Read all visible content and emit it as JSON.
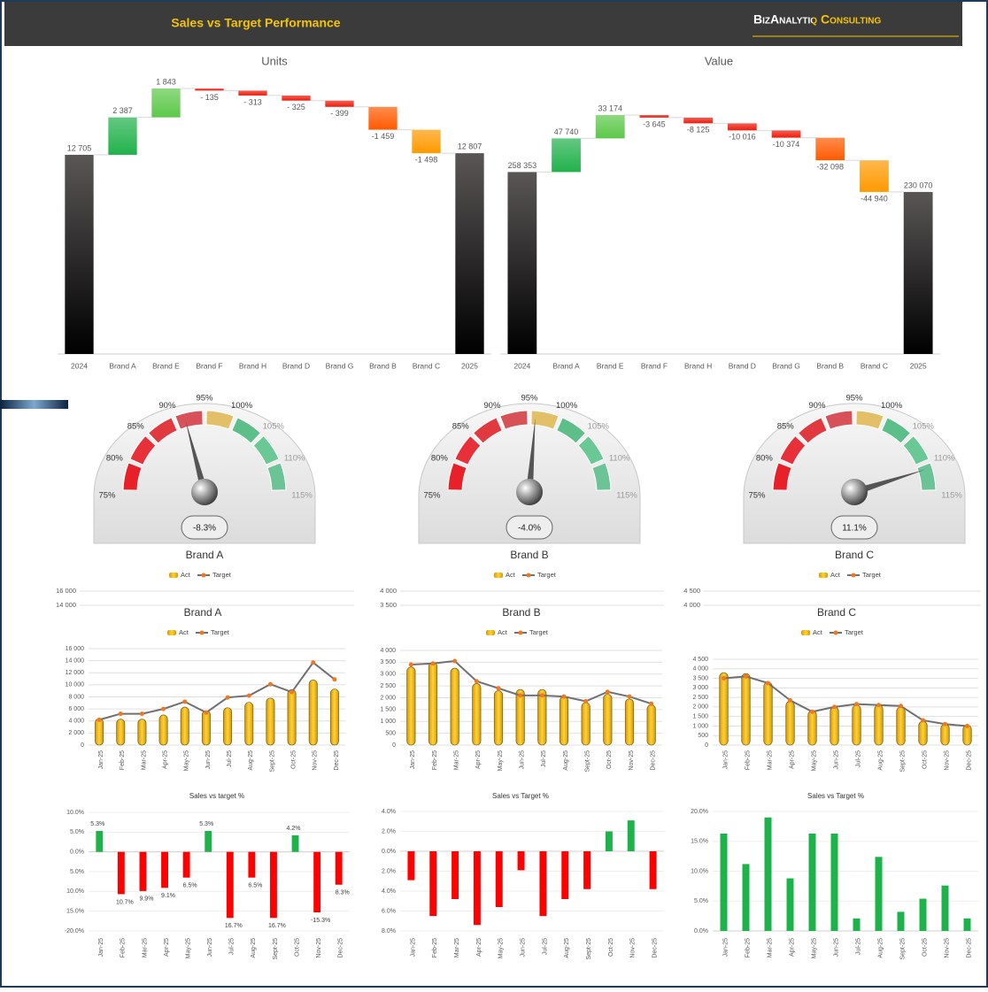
{
  "header": {
    "title": "Sales vs Target Performance",
    "brand": "BizAnalytiq Consulting"
  },
  "chart_data": [
    {
      "type": "waterfall",
      "title": "Units",
      "categories": [
        "2024",
        "Brand A",
        "Brand E",
        "Brand F",
        "Brand H",
        "Brand D",
        "Brand G",
        "Brand B",
        "Brand C",
        "2025"
      ],
      "values": [
        12705,
        2387,
        1843,
        -135,
        -313,
        -325,
        -399,
        -1459,
        -1498,
        12807
      ],
      "value_labels": [
        "12 705",
        "2 387",
        "1 843",
        "- 135",
        "- 313",
        "- 325",
        "- 399",
        "-1 459",
        "-1 498",
        "12 807"
      ],
      "colors": [
        "#5a5656",
        "#22b14c",
        "#5dc84a",
        "#ee1c0c",
        "#ee1c0c",
        "#ee1c0c",
        "#ee1c0c",
        "#ff5a00",
        "#ff9900",
        "#5a5656"
      ]
    },
    {
      "type": "waterfall",
      "title": "Value",
      "categories": [
        "2024",
        "Brand A",
        "Brand E",
        "Brand F",
        "Brand H",
        "Brand D",
        "Brand G",
        "Brand B",
        "Brand C",
        "2025"
      ],
      "values": [
        258353,
        47740,
        33174,
        -3645,
        -8125,
        -10016,
        -10374,
        -32098,
        -44940,
        230070
      ],
      "value_labels": [
        "258 353",
        "47 740",
        "33 174",
        "-3 645",
        "-8 125",
        "-10 016",
        "-10 374",
        "-32 098",
        "-44 940",
        "230 070"
      ],
      "colors": [
        "#5a5656",
        "#22b14c",
        "#5dc84a",
        "#ee1c0c",
        "#ee1c0c",
        "#ee1c0c",
        "#ee1c0c",
        "#ff5a00",
        "#ff9900",
        "#5a5656"
      ]
    },
    {
      "type": "gauge",
      "title": "Brand A",
      "values": [
        -8.3
      ],
      "value_labels": [
        "-8.3%"
      ],
      "target": 100,
      "ylim": [
        75,
        115
      ],
      "yticks": [
        {
          "value": 75,
          "label": "75%"
        },
        {
          "value": 80,
          "label": "80%"
        },
        {
          "value": 85,
          "label": "85%"
        },
        {
          "value": 90,
          "label": "90%"
        },
        {
          "value": 95,
          "label": "95%"
        },
        {
          "value": 100,
          "label": "100%"
        },
        {
          "value": 105,
          "label": "105%"
        },
        {
          "value": 110,
          "label": "110%"
        },
        {
          "value": 115,
          "label": "115%"
        }
      ],
      "band_colors": [
        "#e8202a",
        "#e8303a",
        "#e03a40",
        "#d85058",
        "#e3c068",
        "#5cbf8a",
        "#6ac894",
        "#6cc496"
      ],
      "legend": [
        "Act",
        "Target"
      ],
      "overlay_yticks": [
        {
          "value": 14000,
          "label": "14 000"
        },
        {
          "value": 16000,
          "label": "16 000"
        }
      ]
    },
    {
      "type": "gauge",
      "title": "Brand B",
      "values": [
        -4.0
      ],
      "value_labels": [
        "-4.0%"
      ],
      "target": 100,
      "ylim": [
        75,
        115
      ],
      "yticks": [
        {
          "value": 75,
          "label": "75%"
        },
        {
          "value": 80,
          "label": "80%"
        },
        {
          "value": 85,
          "label": "85%"
        },
        {
          "value": 90,
          "label": "90%"
        },
        {
          "value": 95,
          "label": "95%"
        },
        {
          "value": 100,
          "label": "100%"
        },
        {
          "value": 105,
          "label": "105%"
        },
        {
          "value": 110,
          "label": "110%"
        },
        {
          "value": 115,
          "label": "115%"
        }
      ],
      "band_colors": [
        "#e8202a",
        "#e8303a",
        "#e03a40",
        "#d85058",
        "#e3c068",
        "#5cbf8a",
        "#6ac894",
        "#6cc496"
      ],
      "legend": [
        "Act",
        "Target"
      ],
      "overlay_yticks": [
        {
          "value": 3500,
          "label": "3 500"
        },
        {
          "value": 4000,
          "label": "4 000"
        }
      ]
    },
    {
      "type": "gauge",
      "title": "Brand C",
      "values": [
        11.1
      ],
      "value_labels": [
        "11.1%"
      ],
      "target": 100,
      "ylim": [
        75,
        115
      ],
      "yticks": [
        {
          "value": 75,
          "label": "75%"
        },
        {
          "value": 80,
          "label": "80%"
        },
        {
          "value": 85,
          "label": "85%"
        },
        {
          "value": 90,
          "label": "90%"
        },
        {
          "value": 95,
          "label": "95%"
        },
        {
          "value": 100,
          "label": "100%"
        },
        {
          "value": 105,
          "label": "105%"
        },
        {
          "value": 110,
          "label": "110%"
        },
        {
          "value": 115,
          "label": "115%"
        }
      ],
      "band_colors": [
        "#e8202a",
        "#e8303a",
        "#e03a40",
        "#d85058",
        "#e3c068",
        "#5cbf8a",
        "#6ac894",
        "#6cc496"
      ],
      "legend": [
        "Act",
        "Target"
      ],
      "overlay_yticks": [
        {
          "value": 4000,
          "label": "4 000"
        },
        {
          "value": 4500,
          "label": "4 500"
        }
      ]
    },
    {
      "type": "combo",
      "title": "Brand A",
      "categories": [
        "Jan-25",
        "Feb-25",
        "Mar-25",
        "Apr-25",
        "May-25",
        "Jun-25",
        "Jul-25",
        "Aug-25",
        "Sept-25",
        "Oct-25",
        "Nov-25",
        "Dec-25"
      ],
      "series": [
        {
          "name": "Act",
          "type": "bar",
          "color": "#f2b705",
          "values": [
            4400,
            4300,
            4300,
            5000,
            6300,
            5700,
            6200,
            7100,
            7800,
            9200,
            10800,
            9300
          ]
        },
        {
          "name": "Target",
          "type": "line",
          "color": "#707070",
          "marker_color": "#f07820",
          "values": [
            4200,
            5200,
            5200,
            6000,
            7200,
            5400,
            7900,
            8200,
            10100,
            8800,
            13700,
            10900
          ]
        }
      ],
      "ylim": [
        0,
        16000
      ],
      "yticks": [
        0,
        {
          "value": 2000,
          "label": "2 000"
        },
        {
          "value": 4000,
          "label": "4 000"
        },
        {
          "value": 6000,
          "label": "6 000"
        },
        {
          "value": 8000,
          "label": "8 000"
        },
        {
          "value": 10000,
          "label": "10 000"
        },
        {
          "value": 12000,
          "label": "12 000"
        },
        {
          "value": 14000,
          "label": "14 000"
        },
        {
          "value": 16000,
          "label": "16 000"
        }
      ]
    },
    {
      "type": "combo",
      "title": "Brand B",
      "categories": [
        "Jan-25",
        "Feb-25",
        "Mar-25",
        "Apr-25",
        "May-25",
        "Jun-25",
        "Jul-25",
        "Aug-25",
        "Sept-25",
        "Oct-25",
        "Nov-25",
        "Dec-25"
      ],
      "series": [
        {
          "name": "Act",
          "type": "bar",
          "color": "#f2b705",
          "values": [
            3300,
            3500,
            3250,
            2600,
            2300,
            2350,
            2350,
            2050,
            1800,
            2150,
            1950,
            1700
          ]
        },
        {
          "name": "Target",
          "type": "line",
          "color": "#707070",
          "marker_color": "#f07820",
          "values": [
            3400,
            3450,
            3550,
            2700,
            2400,
            2100,
            2100,
            2050,
            1850,
            2250,
            2050,
            1750
          ]
        }
      ],
      "ylim": [
        0,
        4000
      ],
      "yticks": [
        0,
        500,
        {
          "value": 1000,
          "label": "1 000"
        },
        {
          "value": 1500,
          "label": "1 500"
        },
        {
          "value": 2000,
          "label": "2 000"
        },
        {
          "value": 2500,
          "label": "2 500"
        },
        {
          "value": 3000,
          "label": "3 000"
        },
        {
          "value": 3500,
          "label": "3 500"
        },
        {
          "value": 4000,
          "label": "4 000"
        }
      ]
    },
    {
      "type": "combo",
      "title": "Brand C",
      "categories": [
        "Jan-25",
        "Feb-25",
        "Mar-25",
        "Apr-25",
        "May-25",
        "Jun-25",
        "Jul-25",
        "Aug-25",
        "Sept-25",
        "Oct-25",
        "Nov-25",
        "Dec-25"
      ],
      "series": [
        {
          "name": "Act",
          "type": "bar",
          "color": "#f2b705",
          "values": [
            3800,
            3750,
            3300,
            2300,
            1800,
            2000,
            2100,
            2100,
            2000,
            1250,
            1100,
            1050
          ]
        },
        {
          "name": "Target",
          "type": "line",
          "color": "#707070",
          "marker_color": "#f07820",
          "values": [
            3500,
            3600,
            3250,
            2350,
            1750,
            2000,
            2150,
            2100,
            2050,
            1300,
            1100,
            1000
          ]
        }
      ],
      "ylim": [
        0,
        4500
      ],
      "yticks": [
        0,
        500,
        {
          "value": 1000,
          "label": "1 000"
        },
        {
          "value": 1500,
          "label": "1 500"
        },
        {
          "value": 2000,
          "label": "2 000"
        },
        {
          "value": 2500,
          "label": "2 500"
        },
        {
          "value": 3000,
          "label": "3 000"
        },
        {
          "value": 3500,
          "label": "3 500"
        },
        {
          "value": 4000,
          "label": "4 000"
        },
        {
          "value": 4500,
          "label": "4 500"
        }
      ]
    },
    {
      "type": "bar",
      "title": "Sales vs target %",
      "categories": [
        "Jan-25",
        "Feb-25",
        "Mar-25",
        "Apr-25",
        "May-25",
        "Jun-25",
        "Jul-25",
        "Aug-25",
        "Sept-25",
        "Oct-25",
        "Nov-25",
        "Dec-25"
      ],
      "values": [
        5.3,
        -10.7,
        -9.9,
        -9.1,
        -6.5,
        5.3,
        -16.7,
        -6.5,
        -16.7,
        4.2,
        -15.3,
        -8.3
      ],
      "value_labels": [
        "5.3%",
        "10.7%",
        "9.9%",
        "9.1%",
        "6.5%",
        "5.3%",
        "16.7%",
        "6.5%",
        "16.7%",
        "4.2%",
        "-15.3%",
        "8.3%"
      ],
      "ylim": [
        -20,
        10
      ],
      "yticks": [
        {
          "value": 10,
          "label": "10.0%"
        },
        {
          "value": 5,
          "label": "5.0%"
        },
        {
          "value": 0,
          "label": "0.0%"
        },
        {
          "value": -5,
          "label": "5.0%"
        },
        {
          "value": -10,
          "label": "10.0%"
        },
        {
          "value": -15,
          "label": "15.0%"
        },
        {
          "value": -20,
          "label": "-20.0%"
        }
      ],
      "colors": {
        "positive": "#1db34a",
        "negative": "#ff0000"
      }
    },
    {
      "type": "bar",
      "title": "Sales vs Target %",
      "categories": [
        "Jan-25",
        "Feb-25",
        "Mar-25",
        "Apr-25",
        "May-25",
        "Jun-25",
        "Jul-25",
        "Aug-25",
        "Sept-25",
        "Oct-25",
        "Nov-25",
        "Dec-25"
      ],
      "values": [
        -2.9,
        -6.5,
        -4.8,
        -7.4,
        -5.6,
        -1.9,
        -6.5,
        -4.8,
        -3.8,
        2.0,
        3.1,
        -3.8
      ],
      "ylim": [
        -8,
        4
      ],
      "yticks": [
        {
          "value": 4,
          "label": "4.0%"
        },
        {
          "value": 2,
          "label": "2.0%"
        },
        {
          "value": 0,
          "label": "0.0%"
        },
        {
          "value": -2,
          "label": "2.0%"
        },
        {
          "value": -4,
          "label": "4.0%"
        },
        {
          "value": -6,
          "label": "6.0%"
        },
        {
          "value": -8,
          "label": "8.0%"
        }
      ],
      "colors": {
        "positive": "#1db34a",
        "negative": "#ff0000"
      }
    },
    {
      "type": "bar",
      "title": "Sales vs Target %",
      "categories": [
        "Jan-25",
        "Feb-25",
        "Mar-25",
        "Apr-25",
        "May-25",
        "Jun-25",
        "Jul-25",
        "Aug-25",
        "Sept-25",
        "Oct-25",
        "Nov-25",
        "Dec-25"
      ],
      "values": [
        16.3,
        11.2,
        19.0,
        8.8,
        16.3,
        16.3,
        2.1,
        12.4,
        3.2,
        5.4,
        7.6,
        2.1
      ],
      "ylim": [
        0,
        20
      ],
      "yticks": [
        {
          "value": 0,
          "label": "0.0%"
        },
        {
          "value": 5,
          "label": "5.0%"
        },
        {
          "value": 10,
          "label": "10.0%"
        },
        {
          "value": 15,
          "label": "15.0%"
        },
        {
          "value": 20,
          "label": "20.0%"
        }
      ],
      "colors": {
        "positive": "#1db34a",
        "negative": "#ff0000"
      }
    }
  ]
}
